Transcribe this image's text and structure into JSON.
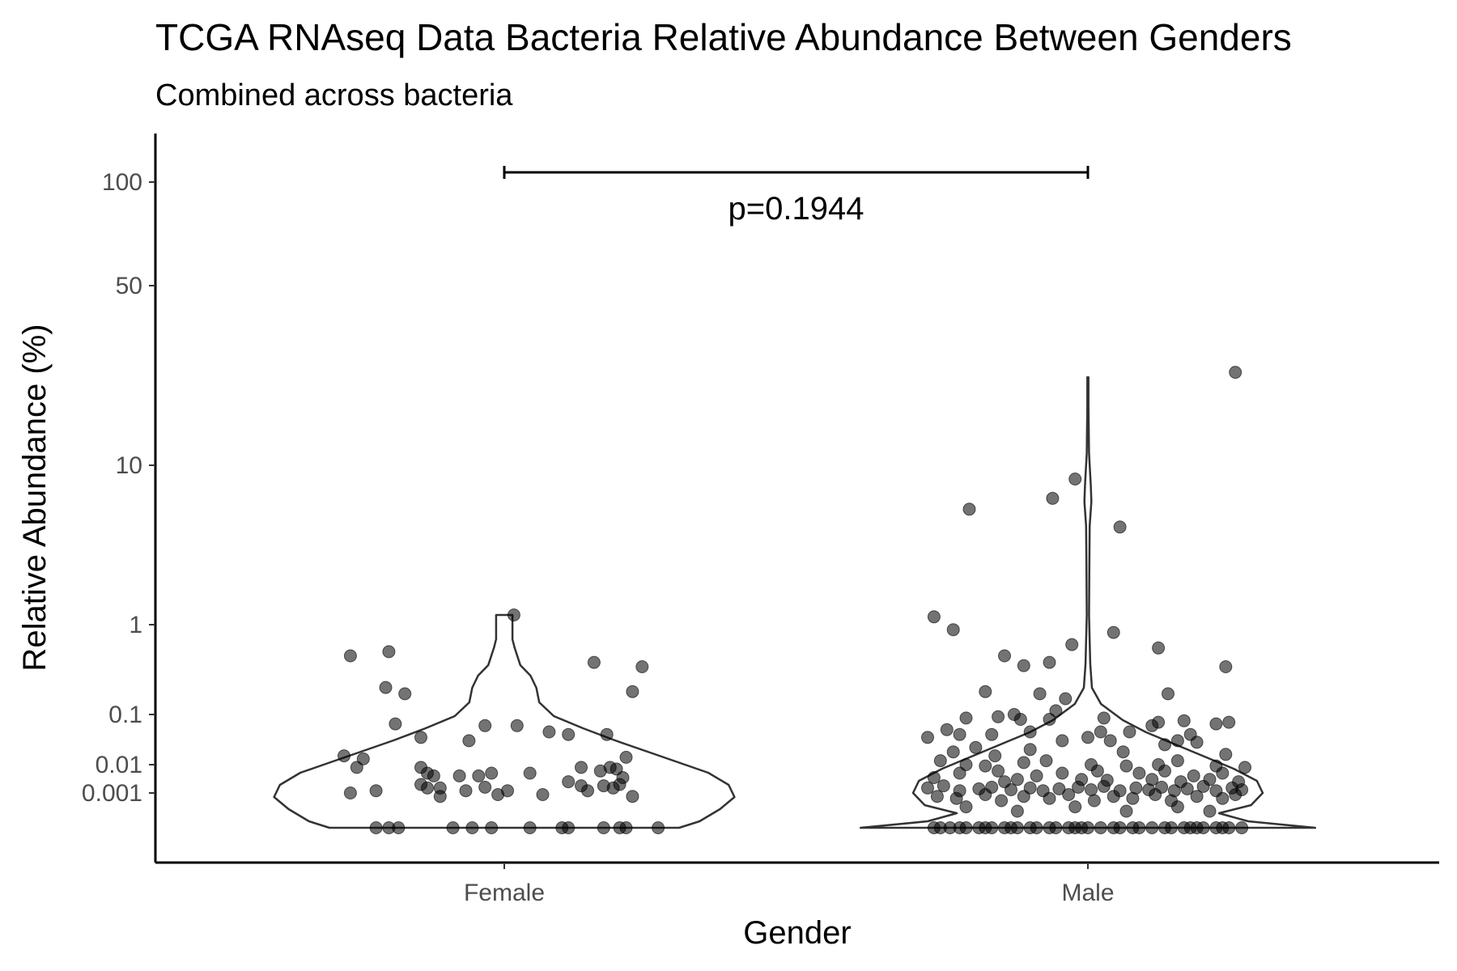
{
  "chart_data": {
    "type": "violin",
    "title": "TCGA RNAseq Data Bacteria Relative Abundance Between Genders",
    "subtitle": "Combined across bacteria",
    "xlabel": "Gender",
    "ylabel": "Relative Abundance (%)",
    "y_scale": "pseudo-log",
    "y_ticks": [
      {
        "value": 100,
        "label": "100"
      },
      {
        "value": 50,
        "label": "50"
      },
      {
        "value": 10,
        "label": "10"
      },
      {
        "value": 1,
        "label": "1"
      },
      {
        "value": 0.1,
        "label": "0.1"
      },
      {
        "value": 0.01,
        "label": "0.01"
      },
      {
        "value": 0.001,
        "label": "0.001"
      }
    ],
    "categories": [
      "Female",
      "Male"
    ],
    "annotation": {
      "text": "p=0.1944",
      "from": "Female",
      "to": "Male",
      "y": 115
    },
    "grid": false,
    "legend": "none",
    "colors": {
      "points": "#000000",
      "violin_outline": "#333333",
      "axis": "#000000"
    },
    "groups": [
      {
        "category": "Female",
        "violin_max": 1.15,
        "points": [
          [
            -0.24,
            0.45
          ],
          [
            -0.18,
            0.5
          ],
          [
            -0.185,
            0.2
          ],
          [
            -0.155,
            0.17
          ],
          [
            0.015,
            1.15
          ],
          [
            0.14,
            0.38
          ],
          [
            0.215,
            0.34
          ],
          [
            0.2,
            0.18
          ],
          [
            -0.17,
            0.065
          ],
          [
            -0.03,
            0.06
          ],
          [
            0.02,
            0.06
          ],
          [
            0.07,
            0.045
          ],
          [
            0.16,
            0.04
          ],
          [
            0.1,
            0.04
          ],
          [
            -0.13,
            0.035
          ],
          [
            -0.055,
            0.03
          ],
          [
            -0.25,
            0.015
          ],
          [
            -0.22,
            0.013
          ],
          [
            -0.23,
            0.008
          ],
          [
            -0.13,
            0.008
          ],
          [
            -0.12,
            0.005
          ],
          [
            -0.11,
            0.004
          ],
          [
            -0.07,
            0.004
          ],
          [
            -0.04,
            0.004
          ],
          [
            -0.02,
            0.005
          ],
          [
            0.04,
            0.005
          ],
          [
            0.12,
            0.008
          ],
          [
            0.165,
            0.008
          ],
          [
            0.19,
            0.014
          ],
          [
            0.175,
            0.007
          ],
          [
            -0.13,
            0.002
          ],
          [
            -0.12,
            0.0015
          ],
          [
            -0.1,
            0.0015
          ],
          [
            -0.2,
            0.0012
          ],
          [
            -0.24,
            0.001
          ],
          [
            -0.1,
            0.0008
          ],
          [
            -0.06,
            0.0012
          ],
          [
            -0.03,
            0.0016
          ],
          [
            -0.01,
            0.0009
          ],
          [
            0.005,
            0.0012
          ],
          [
            0.06,
            0.0009
          ],
          [
            0.1,
            0.0025
          ],
          [
            0.12,
            0.0018
          ],
          [
            0.13,
            0.0012
          ],
          [
            0.155,
            0.0018
          ],
          [
            0.17,
            0.0015
          ],
          [
            0.2,
            0.0008
          ],
          [
            0.185,
            0.0035
          ],
          [
            0.18,
            0.002
          ],
          [
            0.15,
            0.006
          ],
          [
            -0.2,
            0
          ],
          [
            -0.18,
            0
          ],
          [
            -0.165,
            0
          ],
          [
            -0.08,
            0
          ],
          [
            -0.05,
            0
          ],
          [
            -0.02,
            0
          ],
          [
            0.04,
            0
          ],
          [
            0.09,
            0
          ],
          [
            0.1,
            0
          ],
          [
            0.155,
            0
          ],
          [
            0.18,
            0
          ],
          [
            0.19,
            0
          ],
          [
            0.24,
            0
          ]
        ]
      },
      {
        "category": "Male",
        "violin_max": 22,
        "points": [
          [
            0.23,
            23
          ],
          [
            -0.02,
            8.2
          ],
          [
            -0.055,
            6.2
          ],
          [
            -0.185,
            5.3
          ],
          [
            0.05,
            4.1
          ],
          [
            -0.24,
            1.12
          ],
          [
            -0.21,
            0.88
          ],
          [
            0.04,
            0.82
          ],
          [
            -0.025,
            0.6
          ],
          [
            0.11,
            0.55
          ],
          [
            -0.13,
            0.45
          ],
          [
            -0.06,
            0.38
          ],
          [
            -0.1,
            0.35
          ],
          [
            0.215,
            0.34
          ],
          [
            -0.16,
            0.18
          ],
          [
            -0.075,
            0.17
          ],
          [
            0.125,
            0.17
          ],
          [
            -0.035,
            0.15
          ],
          [
            -0.05,
            0.11
          ],
          [
            -0.115,
            0.1
          ],
          [
            -0.19,
            0.085
          ],
          [
            -0.14,
            0.09
          ],
          [
            -0.105,
            0.08
          ],
          [
            0.025,
            0.085
          ],
          [
            -0.06,
            0.08
          ],
          [
            0.11,
            0.07
          ],
          [
            0.15,
            0.075
          ],
          [
            0.22,
            0.07
          ],
          [
            0.2,
            0.065
          ],
          [
            0.1,
            0.06
          ],
          [
            -0.22,
            0.05
          ],
          [
            -0.25,
            0.035
          ],
          [
            -0.2,
            0.04
          ],
          [
            -0.15,
            0.04
          ],
          [
            -0.09,
            0.045
          ],
          [
            0.02,
            0.045
          ],
          [
            0.065,
            0.045
          ],
          [
            0.16,
            0.04
          ],
          [
            -0.04,
            0.03
          ],
          [
            0.0,
            0.035
          ],
          [
            0.035,
            0.03
          ],
          [
            0.12,
            0.025
          ],
          [
            0.14,
            0.03
          ],
          [
            0.17,
            0.028
          ],
          [
            -0.175,
            0.022
          ],
          [
            -0.21,
            0.018
          ],
          [
            -0.145,
            0.015
          ],
          [
            -0.09,
            0.02
          ],
          [
            0.055,
            0.018
          ],
          [
            0.215,
            0.016
          ],
          [
            -0.23,
            0.012
          ],
          [
            -0.19,
            0.01
          ],
          [
            -0.16,
            0.009
          ],
          [
            -0.1,
            0.011
          ],
          [
            -0.065,
            0.012
          ],
          [
            0.005,
            0.01
          ],
          [
            0.06,
            0.009
          ],
          [
            0.11,
            0.01
          ],
          [
            0.14,
            0.012
          ],
          [
            0.2,
            0.009
          ],
          [
            0.245,
            0.008
          ],
          [
            -0.2,
            0.005
          ],
          [
            -0.14,
            0.006
          ],
          [
            -0.08,
            0.004
          ],
          [
            -0.04,
            0.005
          ],
          [
            0.015,
            0.006
          ],
          [
            0.08,
            0.005
          ],
          [
            0.12,
            0.006
          ],
          [
            0.165,
            0.004
          ],
          [
            0.21,
            0.005
          ],
          [
            -0.24,
            0.0035
          ],
          [
            -0.13,
            0.0025
          ],
          [
            -0.11,
            0.003
          ],
          [
            -0.01,
            0.003
          ],
          [
            0.03,
            0.0028
          ],
          [
            0.1,
            0.003
          ],
          [
            0.145,
            0.0025
          ],
          [
            0.19,
            0.003
          ],
          [
            0.235,
            0.0025
          ],
          [
            -0.25,
            0.0015
          ],
          [
            -0.225,
            0.0018
          ],
          [
            -0.2,
            0.0012
          ],
          [
            -0.17,
            0.0014
          ],
          [
            -0.15,
            0.0016
          ],
          [
            -0.12,
            0.0013
          ],
          [
            -0.09,
            0.0015
          ],
          [
            -0.07,
            0.0012
          ],
          [
            -0.045,
            0.0014
          ],
          [
            -0.015,
            0.0016
          ],
          [
            0.005,
            0.0013
          ],
          [
            0.025,
            0.0017
          ],
          [
            0.05,
            0.0012
          ],
          [
            0.075,
            0.0015
          ],
          [
            0.095,
            0.0013
          ],
          [
            0.115,
            0.0016
          ],
          [
            0.135,
            0.0012
          ],
          [
            0.155,
            0.0014
          ],
          [
            0.18,
            0.0017
          ],
          [
            0.2,
            0.0012
          ],
          [
            0.225,
            0.0015
          ],
          [
            0.24,
            0.0013
          ],
          [
            -0.235,
            0.0008
          ],
          [
            -0.205,
            0.0007
          ],
          [
            -0.16,
            0.0009
          ],
          [
            -0.135,
            0.0006
          ],
          [
            -0.1,
            0.0008
          ],
          [
            -0.06,
            0.0007
          ],
          [
            -0.03,
            0.0009
          ],
          [
            0.01,
            0.0006
          ],
          [
            0.04,
            0.0008
          ],
          [
            0.07,
            0.0007
          ],
          [
            0.105,
            0.0009
          ],
          [
            0.13,
            0.0006
          ],
          [
            0.17,
            0.0008
          ],
          [
            0.21,
            0.0007
          ],
          [
            0.23,
            0.0009
          ],
          [
            -0.19,
            0.0004
          ],
          [
            -0.11,
            0.0003
          ],
          [
            -0.02,
            0.0004
          ],
          [
            0.06,
            0.0003
          ],
          [
            0.14,
            0.0004
          ],
          [
            0.19,
            0.0003
          ],
          [
            -0.24,
            0
          ],
          [
            -0.23,
            0
          ],
          [
            -0.215,
            0
          ],
          [
            -0.2,
            0
          ],
          [
            -0.19,
            0
          ],
          [
            -0.17,
            0
          ],
          [
            -0.16,
            0
          ],
          [
            -0.15,
            0
          ],
          [
            -0.13,
            0
          ],
          [
            -0.12,
            0
          ],
          [
            -0.11,
            0
          ],
          [
            -0.09,
            0
          ],
          [
            -0.08,
            0
          ],
          [
            -0.06,
            0
          ],
          [
            -0.05,
            0
          ],
          [
            -0.03,
            0
          ],
          [
            -0.02,
            0
          ],
          [
            -0.01,
            0
          ],
          [
            0.0,
            0
          ],
          [
            0.02,
            0
          ],
          [
            0.04,
            0
          ],
          [
            0.05,
            0
          ],
          [
            0.07,
            0
          ],
          [
            0.08,
            0
          ],
          [
            0.1,
            0
          ],
          [
            0.12,
            0
          ],
          [
            0.13,
            0
          ],
          [
            0.15,
            0
          ],
          [
            0.16,
            0
          ],
          [
            0.17,
            0
          ],
          [
            0.18,
            0
          ],
          [
            0.2,
            0
          ],
          [
            0.21,
            0
          ],
          [
            0.22,
            0
          ],
          [
            0.24,
            0
          ]
        ]
      }
    ]
  }
}
